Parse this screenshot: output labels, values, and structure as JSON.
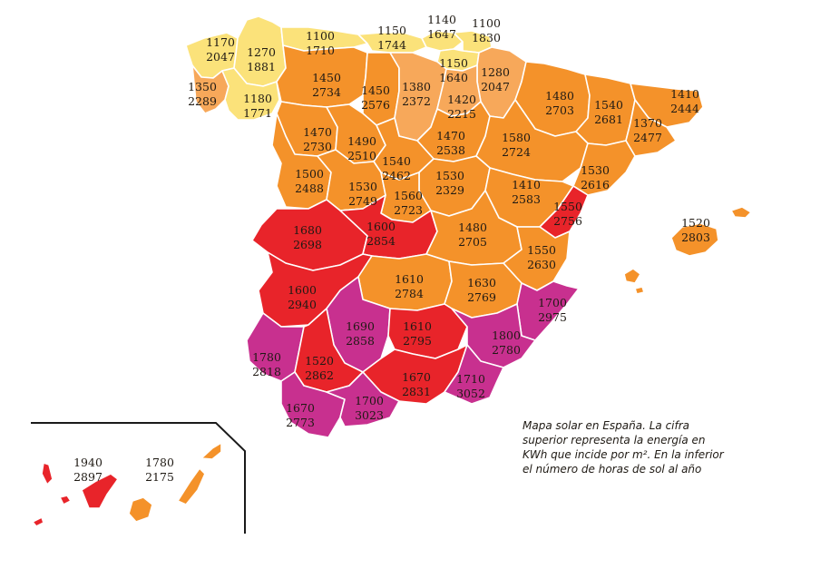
{
  "colors": {
    "yellow": "#fbe27a",
    "light_orange": "#f7a85a",
    "orange": "#f4922a",
    "red": "#e8242a",
    "magenta": "#c8308f",
    "frame": "#1a1a1a"
  },
  "caption": "Mapa solar en España. La cifra superior representa la energía en KWh que incide por m². En la inferior el número de horas de sol al año",
  "regions": [
    {
      "id": "a-coruna",
      "energy": "1170",
      "hours": "2047",
      "color": "yellow"
    },
    {
      "id": "lugo",
      "energy": "1270",
      "hours": "1881",
      "color": "yellow"
    },
    {
      "id": "pontevedra",
      "energy": "1350",
      "hours": "2289",
      "color": "light_orange"
    },
    {
      "id": "ourense",
      "energy": "1180",
      "hours": "1771",
      "color": "yellow"
    },
    {
      "id": "asturias",
      "energy": "1100",
      "hours": "1710",
      "color": "yellow"
    },
    {
      "id": "cantabria",
      "energy": "1150",
      "hours": "1744",
      "color": "yellow"
    },
    {
      "id": "bizkaia",
      "energy": "1140",
      "hours": "1647",
      "color": "yellow"
    },
    {
      "id": "gipuzkoa",
      "energy": "1100",
      "hours": "1830",
      "color": "yellow"
    },
    {
      "id": "araba",
      "energy": "1150",
      "hours": "1640",
      "color": "yellow"
    },
    {
      "id": "navarra",
      "energy": "1280",
      "hours": "2047",
      "color": "light_orange"
    },
    {
      "id": "leon",
      "energy": "1450",
      "hours": "2734",
      "color": "orange"
    },
    {
      "id": "palencia",
      "energy": "1450",
      "hours": "2576",
      "color": "orange"
    },
    {
      "id": "burgos",
      "energy": "1380",
      "hours": "2372",
      "color": "light_orange"
    },
    {
      "id": "la-rioja",
      "energy": "1420",
      "hours": "2215",
      "color": "light_orange"
    },
    {
      "id": "huesca",
      "energy": "1480",
      "hours": "2703",
      "color": "orange"
    },
    {
      "id": "lleida",
      "energy": "1540",
      "hours": "2681",
      "color": "orange"
    },
    {
      "id": "girona",
      "energy": "1410",
      "hours": "2444",
      "color": "orange"
    },
    {
      "id": "barcelona",
      "energy": "1370",
      "hours": "2477",
      "color": "orange"
    },
    {
      "id": "zamora",
      "energy": "1470",
      "hours": "2730",
      "color": "orange"
    },
    {
      "id": "valladolid",
      "energy": "1490",
      "hours": "2510",
      "color": "orange"
    },
    {
      "id": "soria",
      "energy": "1470",
      "hours": "2538",
      "color": "orange"
    },
    {
      "id": "zaragoza",
      "energy": "1580",
      "hours": "2724",
      "color": "orange"
    },
    {
      "id": "tarragona",
      "energy": "1530",
      "hours": "2616",
      "color": "orange"
    },
    {
      "id": "segovia",
      "energy": "1540",
      "hours": "2462",
      "color": "orange"
    },
    {
      "id": "salamanca",
      "energy": "1500",
      "hours": "2488",
      "color": "orange"
    },
    {
      "id": "avila",
      "energy": "1530",
      "hours": "2749",
      "color": "orange"
    },
    {
      "id": "guadalajara",
      "energy": "1530",
      "hours": "2329",
      "color": "orange"
    },
    {
      "id": "teruel",
      "energy": "1410",
      "hours": "2583",
      "color": "orange"
    },
    {
      "id": "madrid",
      "energy": "1560",
      "hours": "2723",
      "color": "orange"
    },
    {
      "id": "castellon",
      "energy": "1550",
      "hours": "2756",
      "color": "red"
    },
    {
      "id": "baleares",
      "energy": "1520",
      "hours": "2803",
      "color": "orange"
    },
    {
      "id": "caceres",
      "energy": "1680",
      "hours": "2698",
      "color": "red"
    },
    {
      "id": "toledo",
      "energy": "1600",
      "hours": "2854",
      "color": "red"
    },
    {
      "id": "cuenca",
      "energy": "1480",
      "hours": "2705",
      "color": "orange"
    },
    {
      "id": "valencia",
      "energy": "1550",
      "hours": "2630",
      "color": "orange"
    },
    {
      "id": "badajoz",
      "energy": "1600",
      "hours": "2940",
      "color": "red"
    },
    {
      "id": "ciudad-real",
      "energy": "1610",
      "hours": "2784",
      "color": "orange"
    },
    {
      "id": "albacete",
      "energy": "1630",
      "hours": "2769",
      "color": "orange"
    },
    {
      "id": "alicante",
      "energy": "1700",
      "hours": "2975",
      "color": "magenta"
    },
    {
      "id": "cordoba",
      "energy": "1690",
      "hours": "2858",
      "color": "magenta"
    },
    {
      "id": "jaen",
      "energy": "1610",
      "hours": "2795",
      "color": "red"
    },
    {
      "id": "murcia",
      "energy": "1800",
      "hours": "2780",
      "color": "magenta"
    },
    {
      "id": "huelva",
      "energy": "1780",
      "hours": "2818",
      "color": "magenta"
    },
    {
      "id": "sevilla",
      "energy": "1520",
      "hours": "2862",
      "color": "red"
    },
    {
      "id": "granada",
      "energy": "1670",
      "hours": "2831",
      "color": "red"
    },
    {
      "id": "almeria",
      "energy": "1710",
      "hours": "3052",
      "color": "magenta"
    },
    {
      "id": "cadiz",
      "energy": "1670",
      "hours": "2773",
      "color": "magenta"
    },
    {
      "id": "malaga",
      "energy": "1700",
      "hours": "3023",
      "color": "magenta"
    },
    {
      "id": "santa-cruz-tenerife",
      "energy": "1940",
      "hours": "2897",
      "color": "red"
    },
    {
      "id": "las-palmas",
      "energy": "1780",
      "hours": "2175",
      "color": "orange"
    }
  ]
}
